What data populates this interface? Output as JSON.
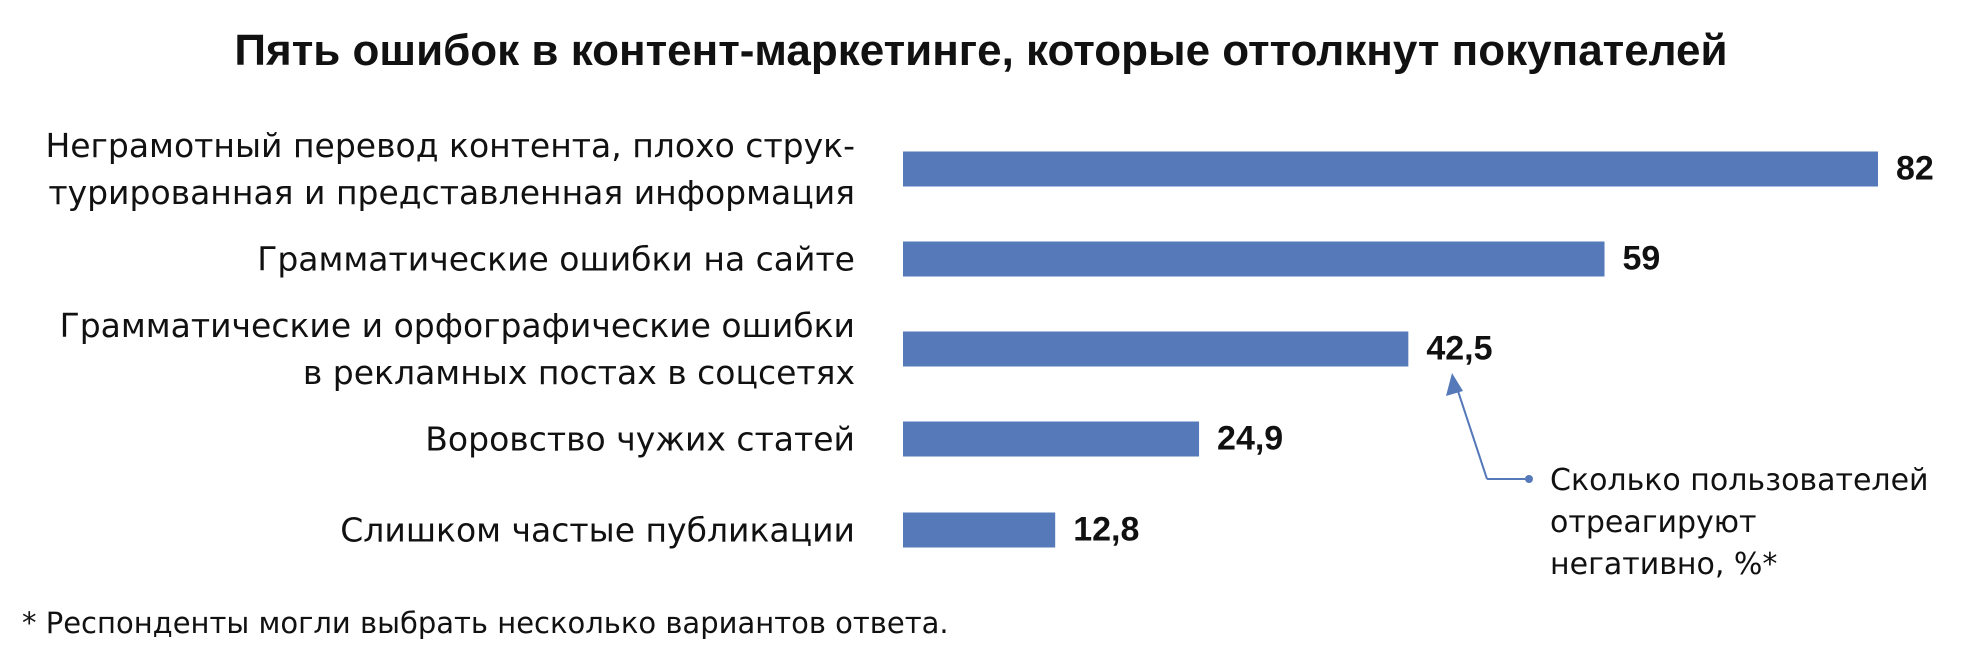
{
  "chart_data": {
    "type": "bar",
    "orientation": "horizontal",
    "title": "Пять ошибок в контент-маркетинге, которые оттолкнут покупателей",
    "categories": [
      "Неграмотный перевод контента, плохо струк-\nтурированная и представленная информация",
      "Грамматические ошибки на сайте",
      "Грамматические и орфографические ошибки\nв рекламных постах в соцсетях",
      "Воровство чужих статей",
      "Слишком частые публикации"
    ],
    "values": [
      82,
      59,
      42.5,
      24.9,
      12.8
    ],
    "value_labels": [
      "82",
      "59",
      "42,5",
      "24,9",
      "12,8"
    ],
    "color": "#5579b9",
    "annotation": "Сколько пользователей\nотреагируют\nнегативно, %*",
    "footnote": "* Респонденты могли выбрать несколько вариантов ответа."
  }
}
